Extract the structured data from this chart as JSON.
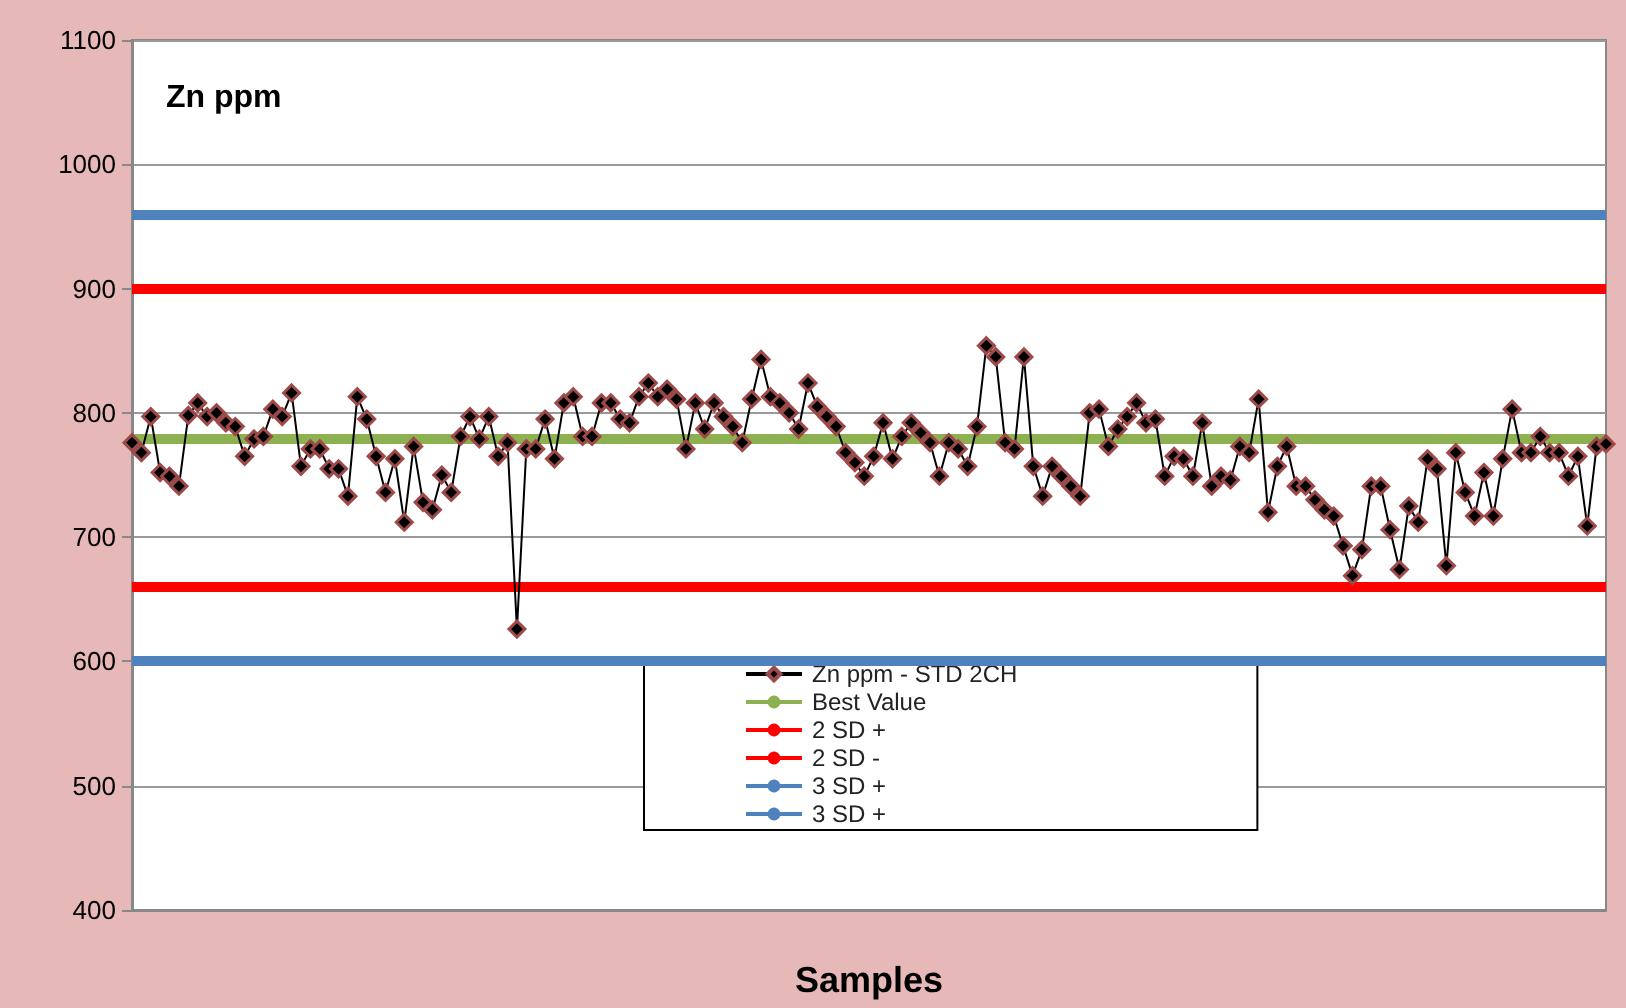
{
  "chart_data": {
    "type": "line",
    "title": "Zn ppm",
    "xlabel": "Samples",
    "categories": [
      null,
      null,
      null,
      null,
      null,
      null,
      null,
      null,
      null,
      null,
      null,
      null,
      null,
      null,
      null,
      null,
      null,
      null,
      null,
      null,
      null,
      null,
      null,
      null,
      null,
      null,
      null,
      null,
      null,
      null,
      null,
      null,
      null,
      null,
      null,
      null,
      null,
      null,
      null,
      null,
      null,
      null,
      null,
      null,
      null,
      null,
      null,
      null,
      null,
      null,
      null,
      null,
      null,
      null,
      null,
      null,
      null,
      null,
      null,
      null,
      null,
      null,
      null,
      null,
      null,
      null,
      null,
      null,
      null,
      null,
      null,
      null,
      null,
      null,
      null,
      null,
      null,
      null,
      null,
      null,
      null,
      null,
      null,
      null,
      null,
      null,
      null,
      null,
      null,
      null,
      null,
      null,
      null,
      null,
      null,
      null,
      null,
      null,
      null,
      null,
      null,
      null,
      null,
      null,
      null,
      null,
      null,
      null,
      null,
      null,
      null,
      null,
      null,
      null,
      null,
      null,
      null,
      null,
      null,
      null,
      null,
      null,
      null,
      null,
      null,
      null,
      null,
      null,
      null,
      null,
      null,
      null,
      null,
      null,
      null,
      null,
      null,
      null,
      null,
      null,
      null,
      null,
      null,
      null,
      null,
      null,
      null,
      null,
      null,
      null,
      null,
      null,
      null,
      null,
      null,
      null,
      null,
      null
    ],
    "series": [
      {
        "name": "Zn ppm - STD 2CH",
        "color": "#000000",
        "values": [
          776,
          768,
          797,
          752,
          749,
          741,
          798,
          808,
          797,
          800,
          792,
          789,
          765,
          779,
          781,
          803,
          797,
          816,
          757,
          771,
          771,
          755,
          755,
          733,
          813,
          795,
          765,
          736,
          763,
          712,
          773,
          728,
          722,
          750,
          736,
          781,
          797,
          779,
          797,
          765,
          776,
          626,
          771,
          771,
          795,
          763,
          808,
          813,
          781,
          781,
          808,
          808,
          795,
          792,
          813,
          824,
          813,
          819,
          811,
          771,
          808,
          787,
          808,
          797,
          789,
          776,
          811,
          843,
          813,
          808,
          800,
          787,
          824,
          805,
          797,
          789,
          768,
          760,
          749,
          765,
          792,
          763,
          781,
          792,
          784,
          776,
          749,
          776,
          771,
          757,
          789,
          854,
          845,
          776,
          771,
          845,
          757,
          733,
          757,
          749,
          741,
          733,
          800,
          803,
          773,
          787,
          797,
          808,
          792,
          795,
          749,
          765,
          763,
          749,
          792,
          741,
          749,
          746,
          773,
          768,
          811,
          720,
          757,
          773,
          741,
          741,
          730,
          722,
          717,
          693,
          669,
          690,
          741,
          741,
          706,
          674,
          725,
          712,
          763,
          755,
          677,
          768,
          736,
          717,
          752,
          717,
          763,
          803,
          768,
          768,
          781,
          768,
          768,
          749,
          765,
          709,
          773,
          775
        ]
      }
    ],
    "ref_lines": [
      {
        "axis": "y",
        "value": 780,
        "label": "Best Value",
        "color": "#8db050"
      },
      {
        "axis": "y",
        "value": 900,
        "label": "2 SD +",
        "color": "#ff0000"
      },
      {
        "axis": "y",
        "value": 660,
        "label": "2 SD -",
        "color": "#ff0000"
      },
      {
        "axis": "y",
        "value": 960,
        "label": "3 SD +",
        "color": "#4f81bd"
      },
      {
        "axis": "y",
        "value": 600,
        "label": "3 SD +",
        "color": "#4f81bd"
      }
    ],
    "ylim": [
      400,
      1100
    ],
    "yticks": [
      400,
      500,
      600,
      700,
      800,
      900,
      1000,
      1100
    ],
    "grid": "y",
    "legend": "bottom",
    "marker": "diamond",
    "line_style": "solid"
  }
}
